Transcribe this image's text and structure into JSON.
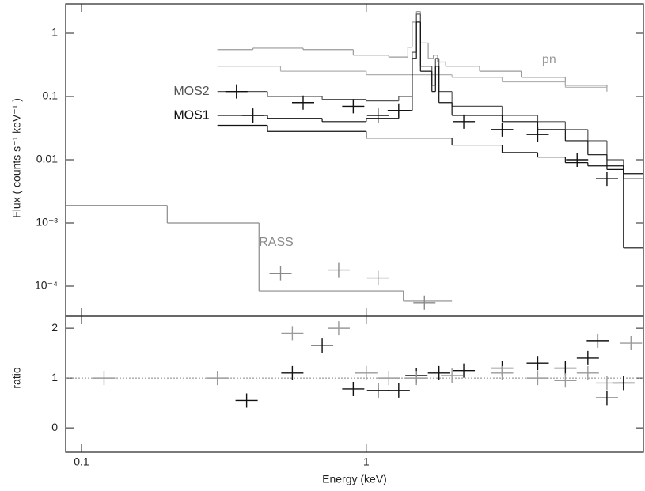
{
  "chart_data": [
    {
      "type": "line",
      "x_log": true,
      "y_log": true,
      "y_label": "Flux ( counts s⁻¹ keV⁻¹ )",
      "xlim": [
        0.088,
        9.4
      ],
      "ylim": [
        3.35e-05,
        2.9
      ],
      "yticks": [
        1,
        0.1,
        0.01,
        {
          "value": 0.001,
          "label": "10⁻³"
        },
        {
          "value": 0.0001,
          "label": "10⁻⁴"
        }
      ],
      "series": [
        {
          "name": "pn",
          "color": "#9a9a9a",
          "style": "step",
          "x": [
            0.3,
            0.4,
            0.6,
            0.9,
            1.2,
            1.4,
            1.45,
            1.5,
            1.55,
            1.65,
            1.72,
            1.78,
            1.9,
            2.5,
            3.5,
            5,
            7
          ],
          "values": [
            0.55,
            0.58,
            0.55,
            0.45,
            0.42,
            0.6,
            1.5,
            2.2,
            0.7,
            0.4,
            0.45,
            0.35,
            0.3,
            0.25,
            0.2,
            0.15,
            0.12
          ]
        },
        {
          "color": "#b0b0b0",
          "style": "step",
          "x": [
            0.3,
            0.5,
            1,
            2,
            3,
            5,
            7
          ],
          "values": [
            0.3,
            0.25,
            0.22,
            0.2,
            0.17,
            0.14,
            0.12
          ]
        },
        {
          "name": "MOS2",
          "color": "#555555",
          "style": "step",
          "x": [
            0.3,
            0.45,
            0.7,
            1.0,
            1.3,
            1.45,
            1.5,
            1.55,
            1.7,
            1.75,
            1.8,
            2.0,
            3,
            4,
            5,
            6,
            7,
            8,
            9.4
          ],
          "values": [
            0.12,
            0.1,
            0.09,
            0.085,
            0.1,
            0.5,
            2.0,
            0.3,
            0.15,
            0.4,
            0.12,
            0.07,
            0.05,
            0.04,
            0.03,
            0.02,
            0.01,
            0.005,
            0.005
          ]
        },
        {
          "name": "MOS1",
          "color": "#111111",
          "style": "step",
          "x": [
            0.3,
            0.45,
            0.7,
            1.0,
            1.3,
            1.45,
            1.5,
            1.55,
            1.7,
            1.75,
            1.8,
            2.0,
            3,
            4,
            5,
            6,
            7,
            8,
            9.4
          ],
          "values": [
            0.05,
            0.045,
            0.04,
            0.045,
            0.06,
            0.4,
            1.5,
            0.25,
            0.12,
            0.3,
            0.08,
            0.05,
            0.04,
            0.03,
            0.02,
            0.012,
            0.008,
            0.006,
            0.006
          ]
        },
        {
          "color": "#111111",
          "style": "step",
          "x": [
            0.3,
            0.45,
            1,
            2,
            3,
            4,
            5,
            6,
            7,
            8,
            9.4
          ],
          "values": [
            0.035,
            0.028,
            0.022,
            0.017,
            0.013,
            0.011,
            0.009,
            0.008,
            0.007,
            0.0004,
            0.0004
          ]
        },
        {
          "name": "RASS",
          "color": "#8a8a8a",
          "style": "step",
          "x": [
            0.088,
            0.2,
            0.42,
            1.35,
            2.0
          ],
          "values": [
            0.0019,
            0.001,
            8.4e-05,
            5.8e-05,
            5.8e-05
          ]
        },
        {
          "color": "#8a8a8a",
          "style": "points",
          "x": [
            0.5,
            0.8,
            1.1,
            1.6
          ],
          "values": [
            0.00016,
            0.00018,
            0.000135,
            5.5e-05
          ]
        },
        {
          "color": "#111111",
          "style": "points",
          "x": [
            0.35,
            0.4,
            0.6,
            0.9,
            1.1,
            1.3,
            2.2,
            3,
            4,
            5.5,
            7
          ],
          "values": [
            0.12,
            0.05,
            0.08,
            0.07,
            0.05,
            0.06,
            0.04,
            0.03,
            0.025,
            0.01,
            0.005
          ]
        }
      ]
    },
    {
      "type": "line",
      "x_log": true,
      "y_log": false,
      "x_label": "Energy (keV)",
      "y_label": "ratio",
      "xlim": [
        0.088,
        9.4
      ],
      "ylim": [
        -0.49,
        2.24
      ],
      "xticks": [
        0.1,
        1
      ],
      "yticks": [
        0,
        1,
        2
      ],
      "reference": 1,
      "series": [
        {
          "color": "#111111",
          "style": "points",
          "x": [
            0.38,
            0.55,
            0.7,
            0.9,
            1.1,
            1.3,
            1.5,
            1.8,
            2.2,
            3.0,
            4.0,
            5.0,
            6.0,
            6.5,
            7,
            8
          ],
          "values": [
            0.55,
            1.1,
            1.65,
            0.78,
            0.75,
            0.75,
            1.05,
            1.1,
            1.15,
            1.2,
            1.3,
            1.2,
            1.4,
            1.75,
            0.6,
            0.9
          ]
        },
        {
          "color": "#9a9a9a",
          "style": "points",
          "x": [
            0.12,
            0.3,
            0.55,
            0.8,
            1.0,
            1.2,
            1.5,
            2,
            3,
            4,
            5,
            6,
            7,
            8.5
          ],
          "values": [
            1.0,
            1.0,
            1.9,
            2.0,
            1.1,
            1.0,
            1.0,
            1.05,
            1.1,
            1.0,
            0.95,
            1.1,
            0.9,
            1.7
          ]
        }
      ]
    }
  ]
}
